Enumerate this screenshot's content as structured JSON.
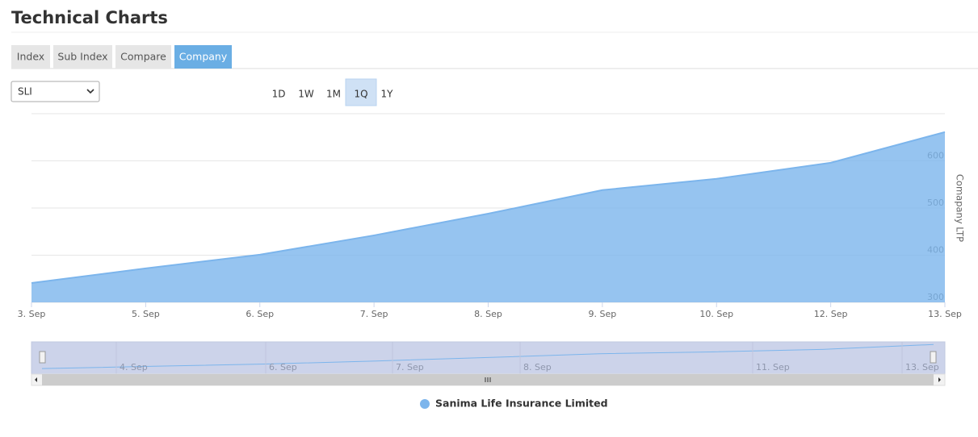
{
  "header": {
    "title": "Technical Charts"
  },
  "tabs": [
    {
      "label": "Index"
    },
    {
      "label": "Sub Index"
    },
    {
      "label": "Compare"
    },
    {
      "label": "Company",
      "active": true
    }
  ],
  "select": {
    "value": "SLI"
  },
  "ranges": [
    {
      "label": "1D"
    },
    {
      "label": "1W"
    },
    {
      "label": "1M"
    },
    {
      "label": "1Q",
      "active": true
    },
    {
      "label": "1Y"
    }
  ],
  "chart_data": {
    "type": "area",
    "categories": [
      "3. Sep",
      "5. Sep",
      "6. Sep",
      "7. Sep",
      "8. Sep",
      "9. Sep",
      "10. Sep",
      "12. Sep",
      "13. Sep"
    ],
    "series": [
      {
        "name": "Sanima Life Insurance Limited",
        "color": "#7cb5ec",
        "values": [
          341,
          372,
          401,
          442,
          488,
          538,
          562,
          596,
          661
        ]
      }
    ],
    "y_axis_label": "Comapany LTP",
    "y_axis_side": "right",
    "ylim": [
      300,
      700
    ],
    "yticks": [
      300,
      400,
      500,
      600
    ],
    "grid": true
  },
  "navigator": {
    "labels": [
      "4. Sep",
      "6. Sep",
      "7. Sep",
      "8. Sep",
      "11. Sep",
      "13. Sep"
    ]
  }
}
